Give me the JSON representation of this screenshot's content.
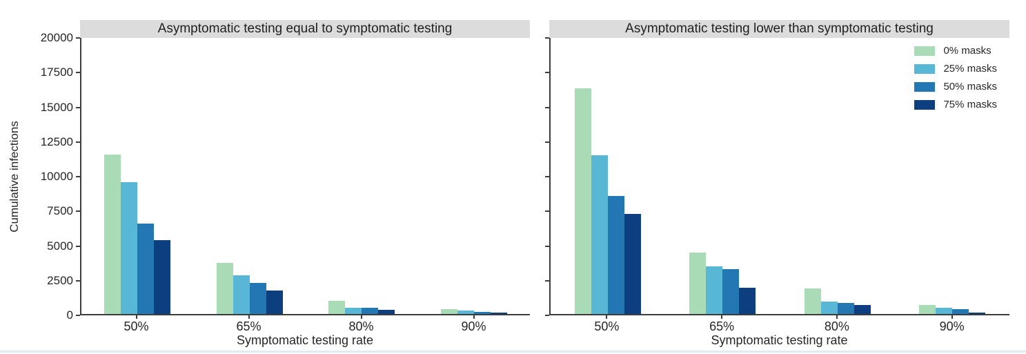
{
  "styles": {
    "strip_background": "#dcdcdc",
    "axis_color": "#3c3c3c",
    "text_color": "#262626",
    "bottom_border_color": "#e2eaf2",
    "series_colors": [
      "#a9dcb6",
      "#58b7d4",
      "#2378b4",
      "#0d3e80"
    ]
  },
  "chart_data": [
    {
      "type": "bar",
      "title": "Asymptomatic testing equal to symptomatic testing",
      "categories": [
        "50%",
        "65%",
        "80%",
        "90%"
      ],
      "series": [
        {
          "name": "0% masks",
          "color": "#a9dcb6",
          "values": [
            11500,
            3700,
            950,
            350
          ]
        },
        {
          "name": "25% masks",
          "color": "#58b7d4",
          "values": [
            9500,
            2800,
            450,
            230
          ]
        },
        {
          "name": "50% masks",
          "color": "#2378b4",
          "values": [
            6500,
            2250,
            470,
            150
          ]
        },
        {
          "name": "75% masks",
          "color": "#0d3e80",
          "values": [
            5300,
            1700,
            300,
            80
          ]
        }
      ],
      "xlabel": "Symptomatic testing rate",
      "ylabel": "Cumulative infections",
      "ylim": [
        0,
        20000
      ],
      "yticks": [
        0,
        2500,
        5000,
        7500,
        10000,
        12500,
        15000,
        17500,
        20000
      ],
      "show_ytick_labels": true,
      "legend": false,
      "grid": false
    },
    {
      "type": "bar",
      "title": "Asymptomatic testing lower than symptomatic testing",
      "categories": [
        "50%",
        "65%",
        "80%",
        "90%"
      ],
      "series": [
        {
          "name": "0% masks",
          "color": "#a9dcb6",
          "values": [
            16250,
            4450,
            1850,
            650
          ]
        },
        {
          "name": "25% masks",
          "color": "#58b7d4",
          "values": [
            11450,
            3450,
            900,
            450
          ]
        },
        {
          "name": "50% masks",
          "color": "#2378b4",
          "values": [
            8500,
            3250,
            800,
            350
          ]
        },
        {
          "name": "75% masks",
          "color": "#0d3e80",
          "values": [
            7200,
            1900,
            670,
            100
          ]
        }
      ],
      "xlabel": "Symptomatic testing rate",
      "ylabel": "",
      "ylim": [
        0,
        20000
      ],
      "yticks": [
        0,
        2500,
        5000,
        7500,
        10000,
        12500,
        15000,
        17500,
        20000
      ],
      "show_ytick_labels": false,
      "legend": true,
      "legend_position": "upper right",
      "grid": false
    }
  ]
}
